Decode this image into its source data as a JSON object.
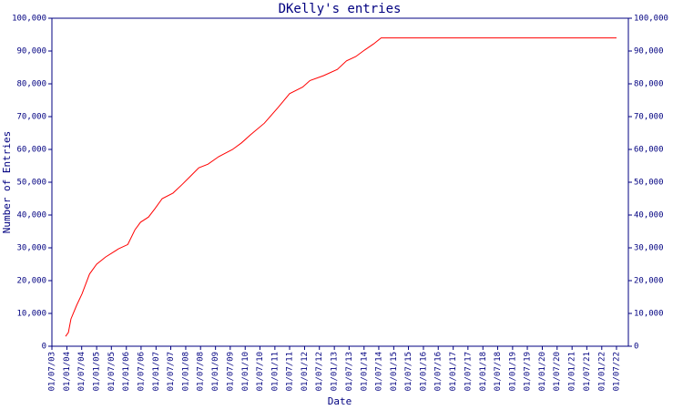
{
  "chart_data": {
    "type": "line",
    "title": "DKelly's entries",
    "x_label": "Date",
    "y_label": "Number of Entries",
    "x": [
      "16/12/03",
      "20/01/04",
      "20/02/04",
      "30/04/04",
      "05/07/04",
      "05/10/04",
      "01/01/05",
      "20/04/05",
      "27/09/05",
      "18/01/06",
      "17/04/06",
      "24/06/06",
      "01/10/06",
      "20/12/06",
      "18/03/07",
      "29/07/07",
      "21/11/07",
      "13/03/08",
      "10/06/08",
      "01/10/08",
      "10/02/09",
      "30/07/09",
      "17/11/09",
      "10/03/10",
      "25/08/10",
      "10/02/11",
      "01/07/11",
      "08/12/11",
      "07/03/12",
      "22/08/12",
      "06/02/13",
      "30/05/13",
      "20/09/13",
      "08/01/14",
      "30/04/14",
      "30/07/14",
      "01/07/22"
    ],
    "series": [
      {
        "name": "DKelly",
        "color": "#ff0000",
        "values": [
          3000,
          4200,
          8300,
          12500,
          16000,
          22000,
          25000,
          27200,
          29700,
          31000,
          35500,
          37800,
          39400,
          42000,
          45000,
          46700,
          49400,
          52200,
          54400,
          55500,
          57800,
          60000,
          62000,
          64500,
          68000,
          72800,
          77000,
          79000,
          81000,
          82500,
          84400,
          87000,
          88300,
          90300,
          92200,
          94000,
          94000
        ]
      }
    ],
    "xlim": [
      "01/07/03",
      "24/11/22"
    ],
    "xticks": [
      "01/07/03",
      "01/01/04",
      "01/07/04",
      "01/01/05",
      "01/07/05",
      "01/01/06",
      "01/07/06",
      "01/01/07",
      "01/07/07",
      "01/01/08",
      "01/07/08",
      "01/01/09",
      "01/07/09",
      "01/01/10",
      "01/07/10",
      "01/01/11",
      "01/07/11",
      "01/01/12",
      "01/07/12",
      "01/01/13",
      "01/07/13",
      "01/01/14",
      "01/07/14",
      "01/01/15",
      "01/07/15",
      "01/01/16",
      "01/07/16",
      "01/01/17",
      "01/07/17",
      "01/01/18",
      "01/07/18",
      "01/01/19",
      "01/07/19",
      "01/01/20",
      "01/07/20",
      "01/01/21",
      "01/07/21",
      "01/01/22",
      "01/07/22"
    ],
    "ylim": [
      0,
      100000
    ],
    "yticks": [
      0,
      {
        "value": 10000,
        "label": "10,000"
      },
      {
        "value": 20000,
        "label": "20,000"
      },
      {
        "value": 30000,
        "label": "30,000"
      },
      {
        "value": 40000,
        "label": "40,000"
      },
      {
        "value": 50000,
        "label": "50,000"
      },
      {
        "value": 60000,
        "label": "60,000"
      },
      {
        "value": 70000,
        "label": "70,000"
      },
      {
        "value": 80000,
        "label": "80,000"
      },
      {
        "value": 90000,
        "label": "90,000"
      },
      {
        "value": 100000,
        "label": "100,000"
      }
    ]
  }
}
